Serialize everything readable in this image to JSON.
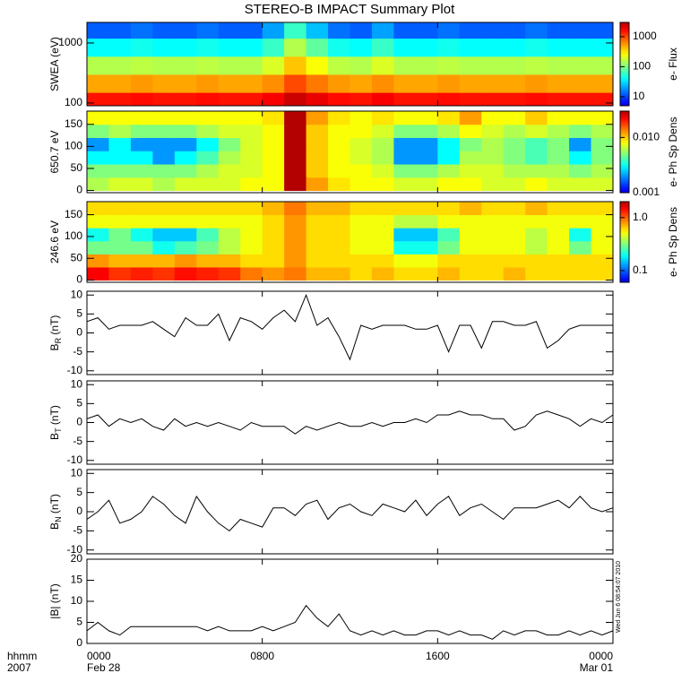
{
  "title": "STEREO-B IMPACT Summary Plot",
  "timestamp": "Wed Jun  6 08:54:07 2010",
  "x_axis": {
    "xlim": [
      0,
      24
    ],
    "xticks": [
      {
        "value": 0,
        "label": "0000"
      },
      {
        "value": 8,
        "label": "0800"
      },
      {
        "value": 16,
        "label": "1600"
      },
      {
        "value": 24,
        "label": "0000"
      }
    ],
    "dates": [
      {
        "value": 0,
        "label": "Feb 28"
      },
      {
        "value": 24,
        "label": "Mar 01"
      }
    ],
    "row_labels": [
      "hhmm",
      "2007"
    ]
  },
  "chart_data": [
    {
      "type": "heatmap",
      "ylabel": "SWEA (eV)",
      "ylog": true,
      "ylim": [
        90,
        2200
      ],
      "yticks": [
        100,
        1000
      ],
      "x_bins": [
        0,
        1,
        2,
        3,
        4,
        5,
        6,
        7,
        8,
        9,
        10,
        11,
        12,
        13,
        14,
        15,
        16,
        17,
        18,
        19,
        20,
        21,
        22,
        23,
        24
      ],
      "y_bins": [
        90,
        150,
        300,
        600,
        1200,
        2200
      ],
      "values": [
        [
          1500,
          1500,
          1600,
          1500,
          1500,
          1600,
          1500,
          1500,
          1800,
          2500,
          2000,
          1600,
          1500,
          1800,
          1500,
          1500,
          1600,
          1500,
          1500,
          1500,
          1600,
          1500,
          1500,
          1500
        ],
        [
          500,
          500,
          550,
          500,
          500,
          550,
          500,
          500,
          600,
          1000,
          700,
          550,
          500,
          600,
          500,
          500,
          550,
          500,
          500,
          500,
          550,
          500,
          500,
          500
        ],
        [
          150,
          150,
          160,
          150,
          150,
          160,
          150,
          150,
          200,
          400,
          250,
          160,
          150,
          200,
          150,
          150,
          160,
          150,
          150,
          150,
          160,
          150,
          150,
          150
        ],
        [
          40,
          40,
          45,
          40,
          40,
          45,
          40,
          40,
          60,
          150,
          80,
          45,
          40,
          60,
          40,
          40,
          45,
          40,
          40,
          40,
          45,
          40,
          40,
          40
        ],
        [
          12,
          12,
          14,
          12,
          12,
          14,
          12,
          12,
          20,
          60,
          25,
          14,
          12,
          20,
          12,
          12,
          14,
          12,
          12,
          12,
          14,
          12,
          12,
          12
        ]
      ],
      "clim": [
        5,
        3000
      ],
      "cticks": [
        10,
        100,
        1000
      ],
      "clabel": "e- Flux"
    },
    {
      "type": "heatmap",
      "ylabel": "650.7 eV",
      "ylim": [
        -5,
        180
      ],
      "yticks": [
        0,
        50,
        100,
        150
      ],
      "x_bins": [
        0,
        1,
        2,
        3,
        4,
        5,
        6,
        7,
        8,
        9,
        10,
        11,
        12,
        13,
        14,
        15,
        16,
        17,
        18,
        19,
        20,
        21,
        22,
        23,
        24
      ],
      "y_bins": [
        0,
        30,
        60,
        90,
        120,
        150,
        180
      ],
      "values": [
        [
          0.006,
          0.007,
          0.007,
          0.006,
          0.007,
          0.007,
          0.007,
          0.008,
          0.008,
          0.03,
          0.012,
          0.009,
          0.008,
          0.008,
          0.007,
          0.007,
          0.008,
          0.008,
          0.007,
          0.007,
          0.008,
          0.007,
          0.007,
          0.007
        ],
        [
          0.005,
          0.005,
          0.005,
          0.005,
          0.005,
          0.006,
          0.007,
          0.007,
          0.008,
          0.03,
          0.01,
          0.008,
          0.008,
          0.007,
          0.005,
          0.005,
          0.006,
          0.007,
          0.007,
          0.006,
          0.006,
          0.006,
          0.005,
          0.006
        ],
        [
          0.003,
          0.003,
          0.003,
          0.002,
          0.003,
          0.004,
          0.006,
          0.007,
          0.008,
          0.03,
          0.01,
          0.008,
          0.007,
          0.006,
          0.002,
          0.002,
          0.003,
          0.006,
          0.006,
          0.005,
          0.004,
          0.005,
          0.003,
          0.005
        ],
        [
          0.002,
          0.003,
          0.002,
          0.002,
          0.002,
          0.003,
          0.005,
          0.007,
          0.008,
          0.03,
          0.01,
          0.008,
          0.007,
          0.006,
          0.002,
          0.002,
          0.003,
          0.005,
          0.006,
          0.005,
          0.004,
          0.005,
          0.002,
          0.005
        ],
        [
          0.005,
          0.006,
          0.005,
          0.005,
          0.005,
          0.006,
          0.007,
          0.007,
          0.008,
          0.03,
          0.01,
          0.008,
          0.008,
          0.007,
          0.005,
          0.005,
          0.006,
          0.008,
          0.007,
          0.006,
          0.007,
          0.006,
          0.005,
          0.006
        ],
        [
          0.008,
          0.008,
          0.008,
          0.008,
          0.008,
          0.008,
          0.008,
          0.008,
          0.009,
          0.03,
          0.012,
          0.009,
          0.008,
          0.009,
          0.008,
          0.008,
          0.009,
          0.012,
          0.008,
          0.008,
          0.01,
          0.008,
          0.008,
          0.008
        ]
      ],
      "clim": [
        0.001,
        0.03
      ],
      "cticks": [
        0.001,
        {
          "value": 0.01,
          "label": "0.010"
        }
      ],
      "clabel": "e- Ph Sp Dens"
    },
    {
      "type": "heatmap",
      "ylabel": "246.6 eV",
      "ylim": [
        -5,
        180
      ],
      "yticks": [
        0,
        50,
        100,
        150
      ],
      "x_bins": [
        0,
        1,
        2,
        3,
        4,
        5,
        6,
        7,
        8,
        9,
        10,
        11,
        12,
        13,
        14,
        15,
        16,
        17,
        18,
        19,
        20,
        21,
        22,
        23,
        24
      ],
      "y_bins": [
        0,
        30,
        60,
        90,
        120,
        150,
        180
      ],
      "values": [
        [
          1.5,
          1.2,
          1.3,
          1.2,
          1.4,
          1.3,
          1.2,
          0.9,
          0.8,
          0.9,
          0.7,
          0.7,
          0.6,
          0.7,
          0.6,
          0.6,
          0.7,
          0.6,
          0.6,
          0.7,
          0.6,
          0.6,
          0.6,
          0.6
        ],
        [
          0.8,
          0.7,
          0.7,
          0.7,
          0.8,
          0.7,
          0.7,
          0.6,
          0.6,
          0.8,
          0.6,
          0.6,
          0.6,
          0.6,
          0.5,
          0.5,
          0.6,
          0.6,
          0.6,
          0.6,
          0.6,
          0.6,
          0.6,
          0.6
        ],
        [
          0.3,
          0.3,
          0.3,
          0.2,
          0.25,
          0.3,
          0.4,
          0.5,
          0.6,
          0.8,
          0.6,
          0.6,
          0.5,
          0.5,
          0.2,
          0.2,
          0.3,
          0.5,
          0.5,
          0.5,
          0.4,
          0.5,
          0.3,
          0.5
        ],
        [
          0.2,
          0.3,
          0.2,
          0.15,
          0.15,
          0.25,
          0.4,
          0.5,
          0.6,
          0.8,
          0.6,
          0.6,
          0.5,
          0.5,
          0.15,
          0.15,
          0.25,
          0.5,
          0.5,
          0.5,
          0.4,
          0.5,
          0.2,
          0.5
        ],
        [
          0.5,
          0.5,
          0.5,
          0.5,
          0.5,
          0.5,
          0.5,
          0.5,
          0.6,
          0.8,
          0.6,
          0.6,
          0.5,
          0.5,
          0.4,
          0.4,
          0.5,
          0.5,
          0.5,
          0.5,
          0.5,
          0.5,
          0.5,
          0.5
        ],
        [
          0.6,
          0.6,
          0.6,
          0.6,
          0.6,
          0.6,
          0.6,
          0.6,
          0.7,
          0.9,
          0.7,
          0.7,
          0.6,
          0.6,
          0.6,
          0.6,
          0.6,
          0.7,
          0.6,
          0.6,
          0.7,
          0.6,
          0.6,
          0.6
        ]
      ],
      "clim": [
        0.06,
        2
      ],
      "cticks": [
        0.1,
        {
          "value": 1,
          "label": "1.0"
        }
      ],
      "clabel": "e- Ph Sp Dens"
    },
    {
      "type": "line",
      "ylabel": "B",
      "ylabel_sub": "R",
      "ylabel_unit": "(nT)",
      "ylim": [
        -11,
        11
      ],
      "yticks": [
        -10,
        -5,
        0,
        5,
        10
      ],
      "color": "#000000",
      "x": [
        0,
        0.5,
        1,
        1.5,
        2,
        2.5,
        3,
        3.5,
        4,
        4.5,
        5,
        5.5,
        6,
        6.5,
        7,
        7.5,
        8,
        8.5,
        9,
        9.5,
        10,
        10.5,
        11,
        11.5,
        12,
        12.5,
        13,
        13.5,
        14,
        14.5,
        15,
        15.5,
        16,
        16.5,
        17,
        17.5,
        18,
        18.5,
        19,
        19.5,
        20,
        20.5,
        21,
        21.5,
        22,
        22.5,
        23,
        23.5,
        24
      ],
      "values": [
        3,
        4,
        1,
        2,
        2,
        2,
        3,
        1,
        -1,
        4,
        2,
        2,
        5,
        -2,
        4,
        3,
        1,
        4,
        6,
        3,
        10,
        2,
        4,
        -1,
        -7,
        2,
        1,
        2,
        2,
        2,
        1,
        1,
        2,
        -5,
        2,
        2,
        -4,
        3,
        3,
        2,
        2,
        3,
        -4,
        -2,
        1,
        2,
        2,
        2,
        2
      ]
    },
    {
      "type": "line",
      "ylabel": "B",
      "ylabel_sub": "T",
      "ylabel_unit": "(nT)",
      "ylim": [
        -11,
        11
      ],
      "yticks": [
        -10,
        -5,
        0,
        5,
        10
      ],
      "color": "#000000",
      "x": [
        0,
        0.5,
        1,
        1.5,
        2,
        2.5,
        3,
        3.5,
        4,
        4.5,
        5,
        5.5,
        6,
        6.5,
        7,
        7.5,
        8,
        8.5,
        9,
        9.5,
        10,
        10.5,
        11,
        11.5,
        12,
        12.5,
        13,
        13.5,
        14,
        14.5,
        15,
        15.5,
        16,
        16.5,
        17,
        17.5,
        18,
        18.5,
        19,
        19.5,
        20,
        20.5,
        21,
        21.5,
        22,
        22.5,
        23,
        23.5,
        24
      ],
      "values": [
        1,
        2,
        -1,
        1,
        0,
        1,
        -1,
        -2,
        1,
        -1,
        0,
        -1,
        0,
        -1,
        -2,
        0,
        -1,
        -1,
        -1,
        -3,
        -1,
        -2,
        -1,
        0,
        -1,
        -1,
        0,
        -1,
        0,
        0,
        1,
        0,
        2,
        2,
        3,
        2,
        2,
        1,
        1,
        -2,
        -1,
        2,
        3,
        2,
        1,
        -1,
        1,
        0,
        2
      ]
    },
    {
      "type": "line",
      "ylabel": "B",
      "ylabel_sub": "N",
      "ylabel_unit": "(nT)",
      "ylim": [
        -11,
        11
      ],
      "yticks": [
        -10,
        -5,
        0,
        5,
        10
      ],
      "color": "#000000",
      "x": [
        0,
        0.5,
        1,
        1.5,
        2,
        2.5,
        3,
        3.5,
        4,
        4.5,
        5,
        5.5,
        6,
        6.5,
        7,
        7.5,
        8,
        8.5,
        9,
        9.5,
        10,
        10.5,
        11,
        11.5,
        12,
        12.5,
        13,
        13.5,
        14,
        14.5,
        15,
        15.5,
        16,
        16.5,
        17,
        17.5,
        18,
        18.5,
        19,
        19.5,
        20,
        20.5,
        21,
        21.5,
        22,
        22.5,
        23,
        23.5,
        24
      ],
      "values": [
        -2,
        0,
        3,
        -3,
        -2,
        0,
        4,
        2,
        -1,
        -3,
        4,
        0,
        -3,
        -5,
        -2,
        -3,
        -4,
        1,
        1,
        -1,
        2,
        3,
        -2,
        1,
        2,
        0,
        -1,
        2,
        1,
        0,
        3,
        -1,
        2,
        4,
        -1,
        1,
        2,
        0,
        -2,
        1,
        1,
        1,
        2,
        3,
        1,
        4,
        1,
        0,
        1
      ]
    },
    {
      "type": "line",
      "ylabel": "|B| (nT)",
      "ylim": [
        0,
        20
      ],
      "yticks": [
        0,
        5,
        10,
        15,
        20
      ],
      "color": "#000000",
      "x": [
        0,
        0.5,
        1,
        1.5,
        2,
        2.5,
        3,
        3.5,
        4,
        4.5,
        5,
        5.5,
        6,
        6.5,
        7,
        7.5,
        8,
        8.5,
        9,
        9.5,
        10,
        10.5,
        11,
        11.5,
        12,
        12.5,
        13,
        13.5,
        14,
        14.5,
        15,
        15.5,
        16,
        16.5,
        17,
        17.5,
        18,
        18.5,
        19,
        19.5,
        20,
        20.5,
        21,
        21.5,
        22,
        22.5,
        23,
        23.5,
        24
      ],
      "values": [
        3,
        5,
        3,
        2,
        4,
        4,
        4,
        4,
        4,
        4,
        4,
        3,
        4,
        3,
        3,
        3,
        4,
        3,
        4,
        5,
        9,
        6,
        4,
        7,
        3,
        2,
        3,
        2,
        3,
        2,
        2,
        3,
        3,
        2,
        3,
        2,
        2,
        1,
        3,
        2,
        3,
        3,
        2,
        2,
        3,
        2,
        3,
        2,
        3
      ]
    }
  ]
}
